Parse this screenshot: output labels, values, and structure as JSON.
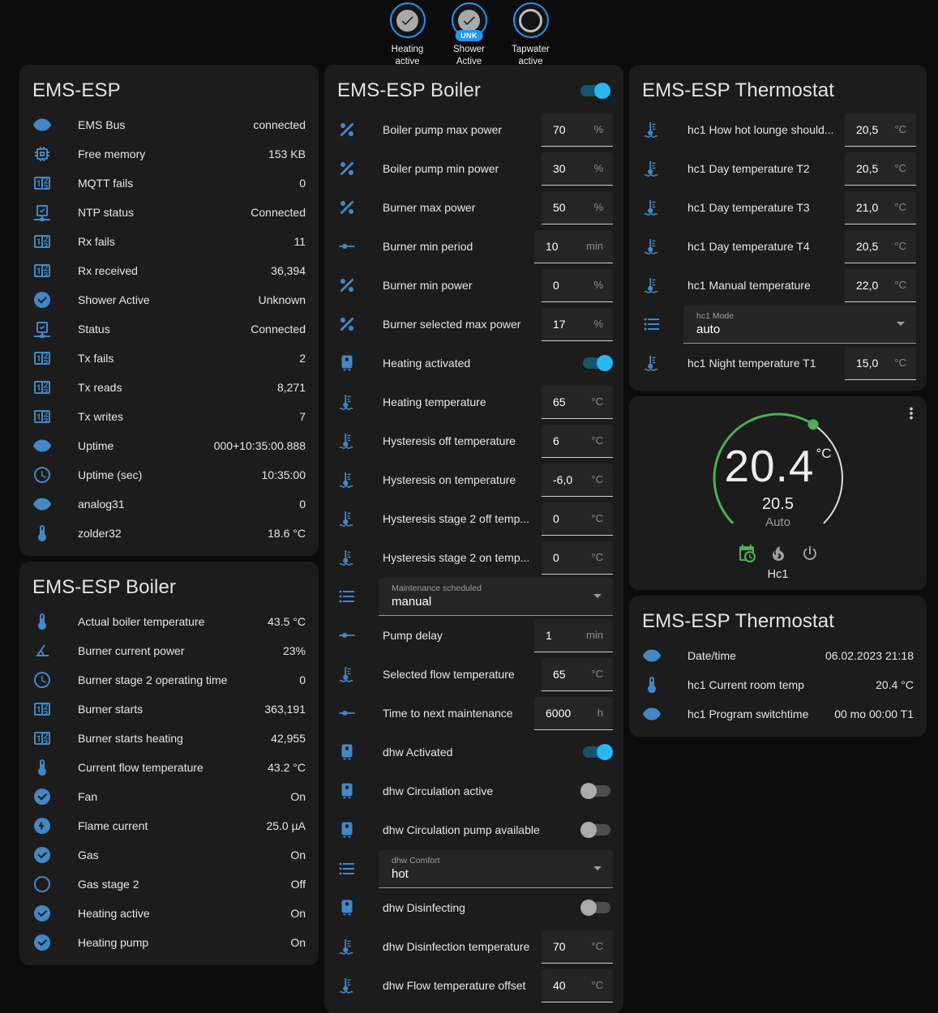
{
  "colors": {
    "accent_blue": "#29b6f6",
    "badge_border_blue": "#2196f3",
    "icon_blue": "#4387c6",
    "gauge_green": "#4caf50",
    "card_bg": "#1c1c1c",
    "page_bg": "#0c0c0c"
  },
  "top_badges": [
    {
      "icon": "check-avatar",
      "label": "Heating active",
      "badge": ""
    },
    {
      "icon": "check-avatar",
      "label": "Shower Active",
      "badge": "UNK"
    },
    {
      "icon": "circle-avatar",
      "label": "Tapwater active",
      "badge": ""
    }
  ],
  "columns": {
    "left": [
      {
        "title": "EMS-ESP",
        "rows": [
          {
            "type": "text",
            "icon": "eye",
            "label": "EMS Bus",
            "value": "connected"
          },
          {
            "type": "text",
            "icon": "memory",
            "label": "Free memory",
            "value": "153 KB"
          },
          {
            "type": "text",
            "icon": "counter",
            "label": "MQTT fails",
            "value": "0"
          },
          {
            "type": "text",
            "icon": "network",
            "label": "NTP status",
            "value": "Connected"
          },
          {
            "type": "text",
            "icon": "counter",
            "label": "Rx fails",
            "value": "11"
          },
          {
            "type": "text",
            "icon": "counter",
            "label": "Rx received",
            "value": "36,394"
          },
          {
            "type": "text",
            "icon": "check-circle",
            "label": "Shower Active",
            "value": "Unknown"
          },
          {
            "type": "text",
            "icon": "network",
            "label": "Status",
            "value": "Connected"
          },
          {
            "type": "text",
            "icon": "counter",
            "label": "Tx fails",
            "value": "2"
          },
          {
            "type": "text",
            "icon": "counter",
            "label": "Tx reads",
            "value": "8,271"
          },
          {
            "type": "text",
            "icon": "counter",
            "label": "Tx writes",
            "value": "7"
          },
          {
            "type": "text",
            "icon": "eye",
            "label": "Uptime",
            "value": "000+10:35:00.888"
          },
          {
            "type": "text",
            "icon": "clock",
            "label": "Uptime (sec)",
            "value": "10:35:00"
          },
          {
            "type": "text",
            "icon": "eye",
            "label": "analog31",
            "value": "0"
          },
          {
            "type": "text",
            "icon": "thermometer",
            "label": "zolder32",
            "value": "18.6 °C"
          }
        ]
      },
      {
        "title": "EMS-ESP Boiler",
        "rows": [
          {
            "type": "text",
            "icon": "thermometer",
            "label": "Actual boiler temperature",
            "value": "43.5 °C"
          },
          {
            "type": "text",
            "icon": "angle",
            "label": "Burner current power",
            "value": "23%"
          },
          {
            "type": "text",
            "icon": "clock",
            "label": "Burner stage 2 operating time",
            "value": "0"
          },
          {
            "type": "text",
            "icon": "counter",
            "label": "Burner starts",
            "value": "363,191"
          },
          {
            "type": "text",
            "icon": "counter",
            "label": "Burner starts heating",
            "value": "42,955"
          },
          {
            "type": "text",
            "icon": "thermometer",
            "label": "Current flow temperature",
            "value": "43.2 °C"
          },
          {
            "type": "text",
            "icon": "check-circle",
            "label": "Fan",
            "value": "On"
          },
          {
            "type": "text",
            "icon": "flash-circle",
            "label": "Flame current",
            "value": "25.0 µA"
          },
          {
            "type": "text",
            "icon": "check-circle",
            "label": "Gas",
            "value": "On"
          },
          {
            "type": "text",
            "icon": "circle-outline",
            "label": "Gas stage 2",
            "value": "Off"
          },
          {
            "type": "text",
            "icon": "check-circle",
            "label": "Heating active",
            "value": "On"
          },
          {
            "type": "text",
            "icon": "check-circle",
            "label": "Heating pump",
            "value": "On"
          }
        ]
      }
    ],
    "middle": [
      {
        "title": "EMS-ESP Boiler",
        "header_toggle": true,
        "header_toggle_on": true,
        "rows": [
          {
            "type": "number",
            "icon": "percent",
            "label": "Boiler pump max power",
            "value": "70",
            "unit": "%"
          },
          {
            "type": "number",
            "icon": "percent",
            "label": "Boiler pump min power",
            "value": "30",
            "unit": "%"
          },
          {
            "type": "number",
            "icon": "percent",
            "label": "Burner max power",
            "value": "50",
            "unit": "%"
          },
          {
            "type": "number",
            "icon": "slider",
            "label": "Burner min period",
            "value": "10",
            "unit": "min"
          },
          {
            "type": "number",
            "icon": "percent",
            "label": "Burner min power",
            "value": "0",
            "unit": "%"
          },
          {
            "type": "number",
            "icon": "percent",
            "label": "Burner selected max power",
            "value": "17",
            "unit": "%"
          },
          {
            "type": "toggle",
            "icon": "water-boiler",
            "label": "Heating activated",
            "on": true
          },
          {
            "type": "number",
            "icon": "thermo-water",
            "label": "Heating temperature",
            "value": "65",
            "unit": "°C"
          },
          {
            "type": "number",
            "icon": "thermo-water",
            "label": "Hysteresis off temperature",
            "value": "6",
            "unit": "°C"
          },
          {
            "type": "number",
            "icon": "thermo-water",
            "label": "Hysteresis on temperature",
            "value": "-6,0",
            "unit": "°C"
          },
          {
            "type": "number",
            "icon": "thermo-water",
            "label": "Hysteresis stage 2 off temp...",
            "value": "0",
            "unit": "°C"
          },
          {
            "type": "number",
            "icon": "thermo-water",
            "label": "Hysteresis stage 2 on temp...",
            "value": "0",
            "unit": "°C"
          },
          {
            "type": "select",
            "icon": "list",
            "select_label": "Maintenance scheduled",
            "value": "manual"
          },
          {
            "type": "number",
            "icon": "slider",
            "label": "Pump delay",
            "value": "1",
            "unit": "min"
          },
          {
            "type": "number",
            "icon": "thermo-water",
            "label": "Selected flow temperature",
            "value": "65",
            "unit": "°C"
          },
          {
            "type": "number",
            "icon": "slider",
            "label": "Time to next maintenance",
            "value": "6000",
            "unit": "h"
          },
          {
            "type": "toggle",
            "icon": "water-boiler",
            "label": "dhw Activated",
            "on": true
          },
          {
            "type": "toggle",
            "icon": "water-boiler",
            "label": "dhw Circulation active",
            "on": false
          },
          {
            "type": "toggle",
            "icon": "water-boiler",
            "label": "dhw Circulation pump available",
            "on": false
          },
          {
            "type": "select",
            "icon": "list",
            "select_label": "dhw Comfort",
            "value": "hot"
          },
          {
            "type": "toggle",
            "icon": "water-boiler",
            "label": "dhw Disinfecting",
            "on": false
          },
          {
            "type": "number",
            "icon": "thermo-water",
            "label": "dhw Disinfection temperature",
            "value": "70",
            "unit": "°C"
          },
          {
            "type": "number",
            "icon": "thermo-water",
            "label": "dhw Flow temperature offset",
            "value": "40",
            "unit": "°C"
          }
        ]
      }
    ],
    "right": [
      {
        "title": "EMS-ESP Thermostat",
        "rows": [
          {
            "type": "number",
            "icon": "thermo-water",
            "label": "hc1 How hot lounge should...",
            "value": "20,5",
            "unit": "°C"
          },
          {
            "type": "number",
            "icon": "thermo-water",
            "label": "hc1 Day temperature T2",
            "value": "20,5",
            "unit": "°C"
          },
          {
            "type": "number",
            "icon": "thermo-water",
            "label": "hc1 Day temperature T3",
            "value": "21,0",
            "unit": "°C"
          },
          {
            "type": "number",
            "icon": "thermo-water",
            "label": "hc1 Day temperature T4",
            "value": "20,5",
            "unit": "°C"
          },
          {
            "type": "number",
            "icon": "thermo-water",
            "label": "hc1 Manual temperature",
            "value": "22,0",
            "unit": "°C"
          },
          {
            "type": "select",
            "icon": "list",
            "select_label": "hc1 Mode",
            "value": "auto"
          },
          {
            "type": "number",
            "icon": "thermo-water",
            "label": "hc1 Night temperature T1",
            "value": "15,0",
            "unit": "°C"
          }
        ]
      },
      {
        "kind": "thermostat",
        "current": "20.4",
        "current_unit": "°C",
        "target": "20.5",
        "mode_label": "Auto",
        "zone": "Hc1",
        "action_icons": [
          "calendar-clock",
          "fire",
          "power"
        ],
        "active_action": 0
      },
      {
        "title": "EMS-ESP Thermostat",
        "rows": [
          {
            "type": "text",
            "icon": "eye",
            "label": "Date/time",
            "value": "06.02.2023 21:18"
          },
          {
            "type": "text",
            "icon": "thermometer",
            "label": "hc1 Current room temp",
            "value": "20.4 °C"
          },
          {
            "type": "text",
            "icon": "eye",
            "label": "hc1 Program switchtime",
            "value": "00 mo 00:00 T1"
          }
        ]
      }
    ]
  }
}
